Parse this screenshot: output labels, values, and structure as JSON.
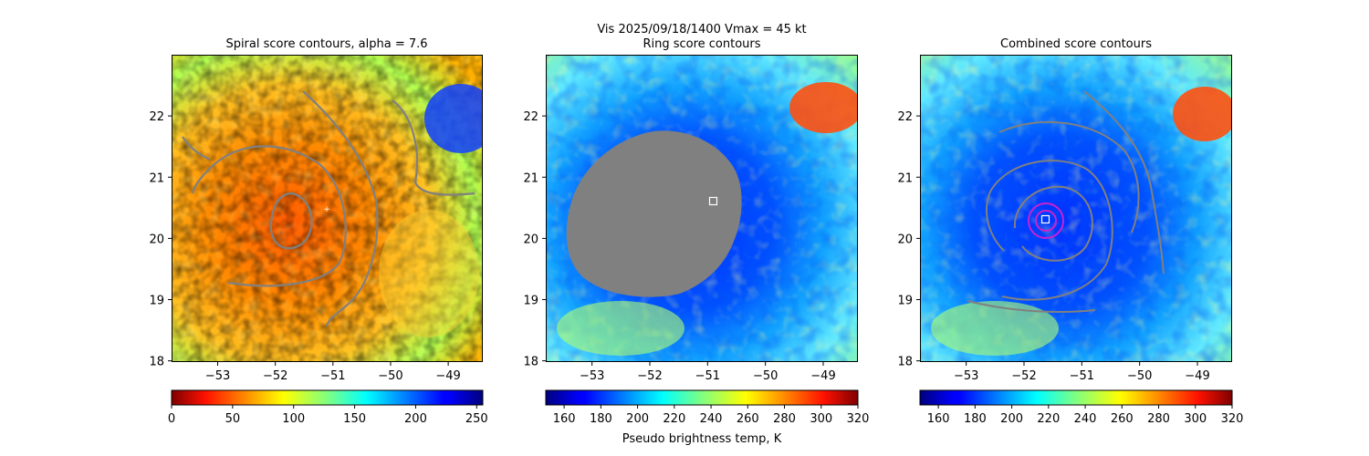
{
  "figure": {
    "suptitle_line1": "Vis  2025/09/18/1400    Vmax = 45 kt",
    "colorbar_label": "Pseudo brightness temp, K"
  },
  "chart_data": [
    {
      "type": "heatmap",
      "title": "Spiral score contours, alpha =  7.6",
      "xlabel": "",
      "ylabel": "",
      "xlim": [
        -53.8,
        -48.4
      ],
      "ylim": [
        17.98,
        23.0
      ],
      "xticks": [
        -53,
        -52,
        -51,
        -50,
        -49
      ],
      "yticks": [
        18,
        19,
        20,
        21,
        22
      ],
      "colormap": "jet_r",
      "colorbar": {
        "range": [
          0,
          255
        ],
        "ticks": [
          0,
          50,
          100,
          150,
          200,
          250
        ]
      },
      "overlay": "score contours (gray)",
      "center_marker": {
        "lon": -50.9,
        "lat": 20.45
      }
    },
    {
      "type": "heatmap",
      "title": "Ring score contours",
      "xlabel": "",
      "ylabel": "",
      "xlim": [
        -53.8,
        -48.4
      ],
      "ylim": [
        17.98,
        23.0
      ],
      "xticks": [
        -53,
        -52,
        -51,
        -50,
        -49
      ],
      "yticks": [
        18,
        19,
        20,
        21,
        22
      ],
      "colormap": "jet",
      "colorbar": {
        "range": [
          150,
          320
        ],
        "ticks": [
          160,
          180,
          200,
          220,
          240,
          260,
          280,
          300,
          320
        ]
      },
      "overlay": "masked region (gray)",
      "center_marker": {
        "lon": -50.9,
        "lat": 20.6
      }
    },
    {
      "type": "heatmap",
      "title": "Combined score contours",
      "xlabel": "",
      "ylabel": "",
      "xlim": [
        -53.8,
        -48.4
      ],
      "ylim": [
        17.98,
        23.0
      ],
      "xticks": [
        -53,
        -52,
        -51,
        -50,
        -49
      ],
      "yticks": [
        18,
        19,
        20,
        21,
        22
      ],
      "colormap": "jet",
      "colorbar": {
        "range": [
          150,
          320
        ],
        "ticks": [
          160,
          180,
          200,
          220,
          240,
          260,
          280,
          300,
          320
        ]
      },
      "overlay": "score contours (gray, magenta)",
      "center_marker": {
        "lon": -51.68,
        "lat": 20.28
      }
    }
  ],
  "colors": {
    "contour_gray": "#808080",
    "contour_magenta": "#cc22cc",
    "mask_gray": "#808080",
    "marker": "#ffffff"
  }
}
